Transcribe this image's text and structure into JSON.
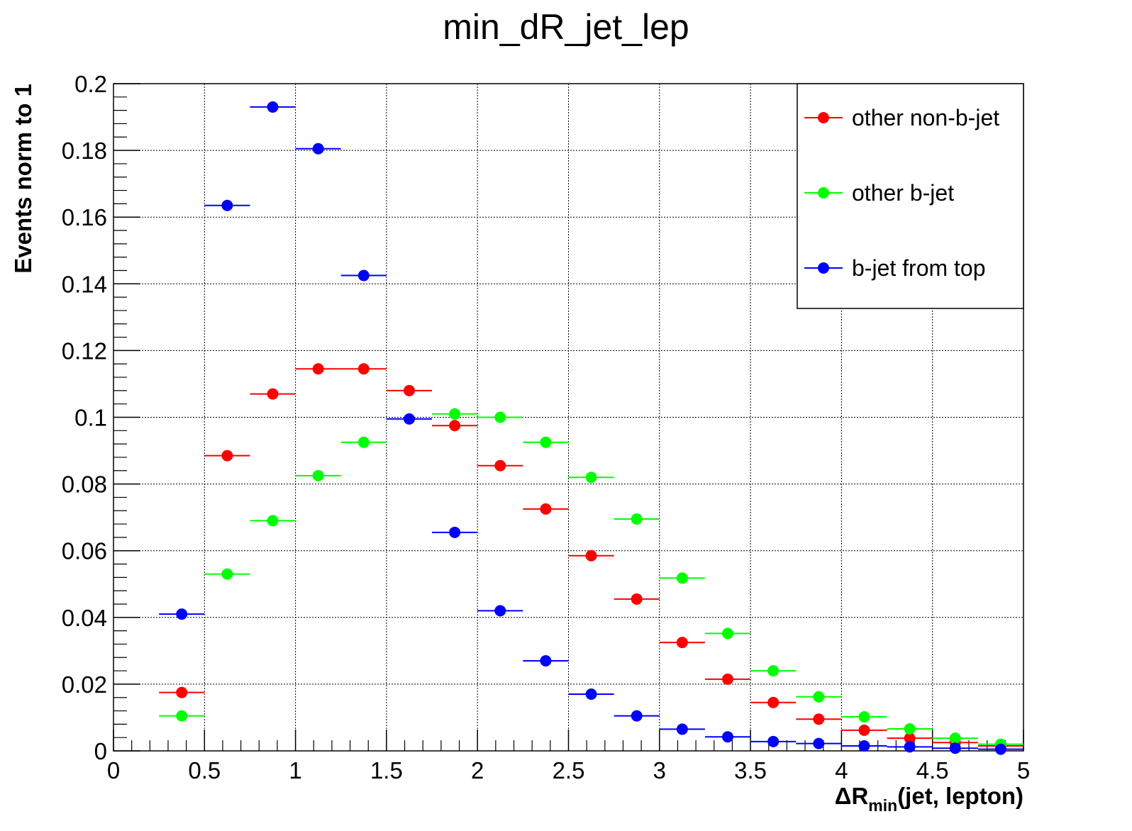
{
  "chart_data": {
    "type": "scatter",
    "title": "min_dR_jet_lep",
    "xlabel": {
      "prefix": "ΔR",
      "subscript": "min",
      "suffix": "(jet, lepton)"
    },
    "ylabel": "Events norm to 1",
    "xlim": [
      0,
      5
    ],
    "ylim": [
      0,
      0.2
    ],
    "grid": true,
    "legend_position": "top-right",
    "x_ticks": [
      "0",
      "0.5",
      "1",
      "1.5",
      "2",
      "2.5",
      "3",
      "3.5",
      "4",
      "4.5",
      "5"
    ],
    "y_ticks": [
      "0",
      "0.02",
      "0.04",
      "0.06",
      "0.08",
      "0.1",
      "0.12",
      "0.14",
      "0.16",
      "0.18",
      "0.2"
    ],
    "bin_width": 0.25,
    "x": [
      0.375,
      0.625,
      0.875,
      1.125,
      1.375,
      1.625,
      1.875,
      2.125,
      2.375,
      2.625,
      2.875,
      3.125,
      3.375,
      3.625,
      3.875,
      4.125,
      4.375,
      4.625,
      4.875
    ],
    "series": [
      {
        "name": "other non-b-jet",
        "color": "#ff0000",
        "values": [
          0.0175,
          0.0885,
          0.107,
          0.1145,
          0.1145,
          0.108,
          0.0975,
          0.0855,
          0.0725,
          0.0585,
          0.0455,
          0.0325,
          0.0215,
          0.0145,
          0.0095,
          0.0062,
          0.0038,
          0.0025,
          0.0015
        ]
      },
      {
        "name": "other b-jet",
        "color": "#00ff00",
        "values": [
          0.0105,
          0.053,
          0.069,
          0.0825,
          0.0925,
          null,
          0.101,
          0.1,
          0.0925,
          0.082,
          0.0695,
          0.0518,
          0.0352,
          0.024,
          0.0162,
          0.0102,
          0.0066,
          0.0038,
          0.002
        ]
      },
      {
        "name": "b-jet from top",
        "color": "#0000ff",
        "values": [
          0.041,
          0.1635,
          0.193,
          0.1805,
          0.1425,
          0.0995,
          0.0655,
          0.042,
          0.027,
          0.017,
          0.0105,
          0.0065,
          0.0042,
          0.0028,
          0.0022,
          0.0015,
          0.0012,
          0.0008,
          0.0005
        ]
      }
    ]
  }
}
